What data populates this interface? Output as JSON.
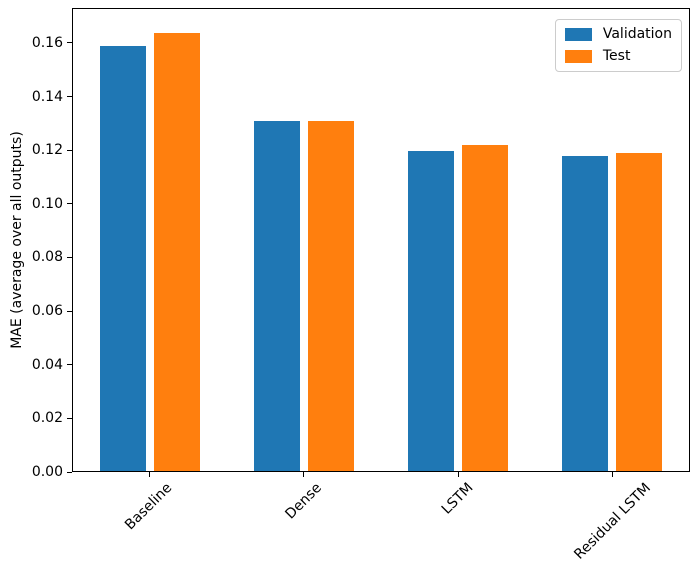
{
  "chart_data": {
    "type": "bar",
    "title": "",
    "xlabel": "",
    "ylabel": "MAE (average over all outputs)",
    "categories": [
      "Baseline",
      "Dense",
      "LSTM",
      "Residual LSTM"
    ],
    "series": [
      {
        "name": "Validation",
        "color": "#1f77b4",
        "values": [
          0.159,
          0.131,
          0.12,
          0.118
        ]
      },
      {
        "name": "Test",
        "color": "#ff7f0e",
        "values": [
          0.164,
          0.131,
          0.122,
          0.119
        ]
      }
    ],
    "ylim": [
      0,
      0.173
    ],
    "xlim": [
      -0.5,
      3.5
    ],
    "ytick_values": [
      0.0,
      0.02,
      0.04,
      0.06,
      0.08,
      0.1,
      0.12,
      0.14,
      0.16
    ],
    "ytick_labels": [
      "0.00",
      "0.02",
      "0.04",
      "0.06",
      "0.08",
      "0.10",
      "0.12",
      "0.14",
      "0.16"
    ],
    "grid": false,
    "legend_position": "upper right",
    "bar_width": 0.3,
    "bar_offsets": [
      -0.175,
      0.175
    ],
    "xtick_rotation_deg": 45
  },
  "colors": {
    "spine": "#000000",
    "legend_border": "#cccccc",
    "background": "#ffffff"
  }
}
